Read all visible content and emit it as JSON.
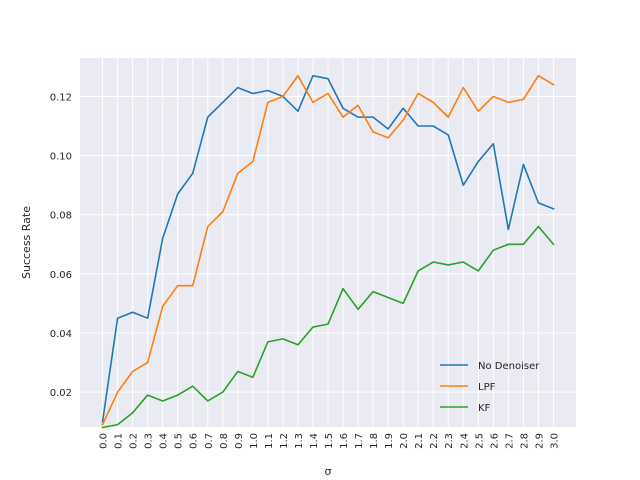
{
  "chart_data": {
    "type": "line",
    "xlabel": "σ",
    "ylabel": "Success Rate",
    "x_tick_labels": [
      "0.0",
      "0.1",
      "0.2",
      "0.3",
      "0.4",
      "0.5",
      "0.6",
      "0.7",
      "0.8",
      "0.9",
      "1.0",
      "1.1",
      "1.2",
      "1.3",
      "1.4",
      "1.5",
      "1.6",
      "1.7",
      "1.8",
      "1.9",
      "2.0",
      "2.1",
      "2.2",
      "2.3",
      "2.4",
      "2.5",
      "2.6",
      "2.7",
      "2.8",
      "2.9",
      "3.0"
    ],
    "x": [
      0.0,
      0.1,
      0.2,
      0.3,
      0.4,
      0.5,
      0.6,
      0.7,
      0.8,
      0.9,
      1.0,
      1.1,
      1.2,
      1.3,
      1.4,
      1.5,
      1.6,
      1.7,
      1.8,
      1.9,
      2.0,
      2.1,
      2.2,
      2.3,
      2.4,
      2.5,
      2.6,
      2.7,
      2.8,
      2.9,
      3.0
    ],
    "xlim": [
      -0.15,
      3.15
    ],
    "y_ticks": [
      0.02,
      0.04,
      0.06,
      0.08,
      0.1,
      0.12
    ],
    "y_tick_labels": [
      "0.02",
      "0.04",
      "0.06",
      "0.08",
      "0.10",
      "0.12"
    ],
    "ylim": [
      0.0082,
      0.133
    ],
    "grid": true,
    "background": "#eaeaf2",
    "legend_position": "lower-right",
    "series": [
      {
        "name": "No Denoiser",
        "color": "#1f77b4",
        "values": [
          0.01,
          0.045,
          0.047,
          0.045,
          0.072,
          0.087,
          0.094,
          0.113,
          0.118,
          0.123,
          0.121,
          0.122,
          0.12,
          0.115,
          0.127,
          0.126,
          0.116,
          0.113,
          0.113,
          0.109,
          0.116,
          0.11,
          0.11,
          0.107,
          0.09,
          0.098,
          0.104,
          0.075,
          0.097,
          0.084,
          0.082
        ]
      },
      {
        "name": "LPF",
        "color": "#ff7f0e",
        "values": [
          0.009,
          0.02,
          0.027,
          0.03,
          0.049,
          0.056,
          0.056,
          0.076,
          0.081,
          0.094,
          0.098,
          0.118,
          0.12,
          0.127,
          0.118,
          0.121,
          0.113,
          0.117,
          0.108,
          0.106,
          0.112,
          0.121,
          0.118,
          0.113,
          0.123,
          0.115,
          0.12,
          0.118,
          0.119,
          0.127,
          0.124
        ]
      },
      {
        "name": "KF",
        "color": "#2ca02c",
        "values": [
          0.008,
          0.009,
          0.013,
          0.019,
          0.017,
          0.019,
          0.022,
          0.017,
          0.02,
          0.027,
          0.025,
          0.037,
          0.038,
          0.036,
          0.042,
          0.043,
          0.055,
          0.048,
          0.054,
          0.052,
          0.05,
          0.061,
          0.064,
          0.063,
          0.064,
          0.061,
          0.068,
          0.07,
          0.07,
          0.076,
          0.07
        ]
      }
    ]
  }
}
